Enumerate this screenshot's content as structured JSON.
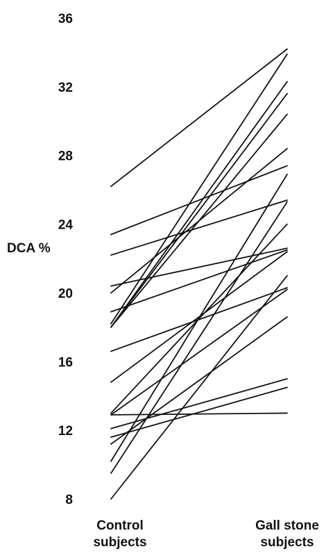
{
  "chart_data": {
    "type": "line",
    "ylabel": "DCA %",
    "ylim": [
      8,
      36
    ],
    "yticks": [
      8,
      12,
      16,
      20,
      24,
      28,
      32,
      36
    ],
    "grid": false,
    "categories": [
      [
        "Control",
        "subjects"
      ],
      [
        "Gall stone",
        "subjects"
      ]
    ],
    "pairs": [
      [
        26.2,
        34.2
      ],
      [
        23.4,
        27.4
      ],
      [
        22.2,
        25.4
      ],
      [
        20.4,
        22.6
      ],
      [
        20.0,
        28.4
      ],
      [
        18.9,
        22.5
      ],
      [
        18.2,
        33.9
      ],
      [
        18.0,
        32.3
      ],
      [
        18.0,
        31.6
      ],
      [
        18.0,
        30.4
      ],
      [
        16.6,
        20.3
      ],
      [
        14.8,
        22.4
      ],
      [
        13.0,
        24.0
      ],
      [
        12.9,
        20.2
      ],
      [
        12.9,
        13.0
      ],
      [
        12.1,
        15.0
      ],
      [
        11.6,
        14.5
      ],
      [
        11.2,
        18.6
      ],
      [
        10.2,
        26.9
      ],
      [
        9.5,
        25.3
      ],
      [
        8.0,
        21.0
      ]
    ]
  }
}
